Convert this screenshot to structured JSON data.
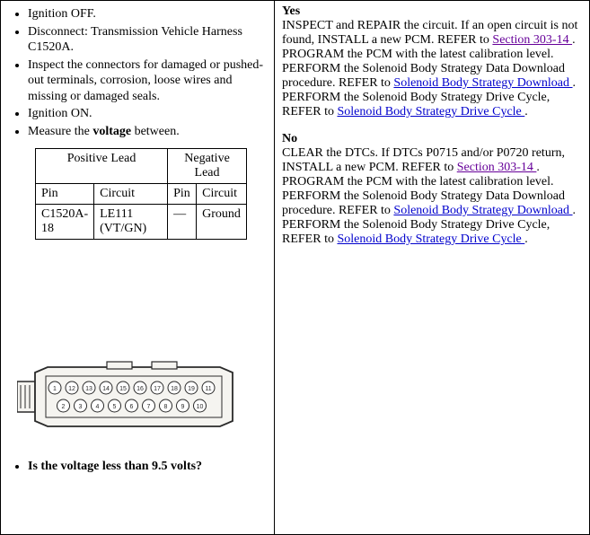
{
  "left": {
    "steps": [
      {
        "text": "Ignition OFF."
      },
      {
        "text": "Disconnect: Transmission Vehicle Harness C1520A."
      },
      {
        "text": "Inspect the connectors for damaged or pushed-out terminals, corrosion, loose wires and missing or damaged seals."
      },
      {
        "text": "Ignition ON."
      },
      {
        "pre": "Measure the ",
        "bold": "voltage",
        "post": " between."
      }
    ],
    "table": {
      "header_pos": "Positive Lead",
      "header_neg": "Negative Lead",
      "sub_pin_a": "Pin",
      "sub_circ_a": "Circuit",
      "sub_pin_b": "Pin",
      "sub_circ_b": "Circuit",
      "row": {
        "pin_a": "C1520A-18",
        "circ_a": "LE111 (VT/GN)",
        "pin_b": "—",
        "circ_b": "Ground"
      },
      "col_widths": {
        "pin_a": 62,
        "circ_a": 82,
        "pin_b": 32,
        "circ_b": 52
      }
    },
    "connector": {
      "body_color": "#f5f4f0",
      "stroke": "#2a2a2a",
      "top_pins": [
        "1",
        "12",
        "13",
        "14",
        "15",
        "16",
        "17",
        "18",
        "19",
        "11"
      ],
      "bot_pins": [
        "2",
        "3",
        "4",
        "5",
        "6",
        "7",
        "8",
        "9",
        "10"
      ]
    },
    "question": "Is the voltage less than 9.5 volts?"
  },
  "right": {
    "yes": {
      "label": "Yes",
      "segs": [
        {
          "t": "INSPECT and REPAIR the circuit. If an open circuit is not found, INSTALL a new PCM. REFER to "
        },
        {
          "t": "Section 303-14 ",
          "link": true,
          "purple": true
        },
        {
          "t": ". PROGRAM the PCM with the latest calibration level. PERFORM the Solenoid Body Strategy Data Download procedure. REFER to "
        },
        {
          "t": "Solenoid Body Strategy Download ",
          "link": true
        },
        {
          "t": ". PERFORM the Solenoid Body Strategy Drive Cycle, REFER to "
        },
        {
          "t": "Solenoid Body Strategy Drive Cycle ",
          "link": true
        },
        {
          "t": "."
        }
      ]
    },
    "no": {
      "label": "No",
      "segs": [
        {
          "t": "CLEAR the DTCs. If DTCs P0715 and/or P0720 return, INSTALL a new PCM. REFER to "
        },
        {
          "t": "Section 303-14 ",
          "link": true,
          "purple": true
        },
        {
          "t": ". PROGRAM the PCM with the latest calibration level. PERFORM the Solenoid Body Strategy Data Download procedure. REFER to "
        },
        {
          "t": "Solenoid Body Strategy Download ",
          "link": true
        },
        {
          "t": ". PERFORM the Solenoid Body Strategy Drive Cycle, REFER to "
        },
        {
          "t": "Solenoid Body Strategy Drive Cycle ",
          "link": true
        },
        {
          "t": "."
        }
      ]
    }
  }
}
